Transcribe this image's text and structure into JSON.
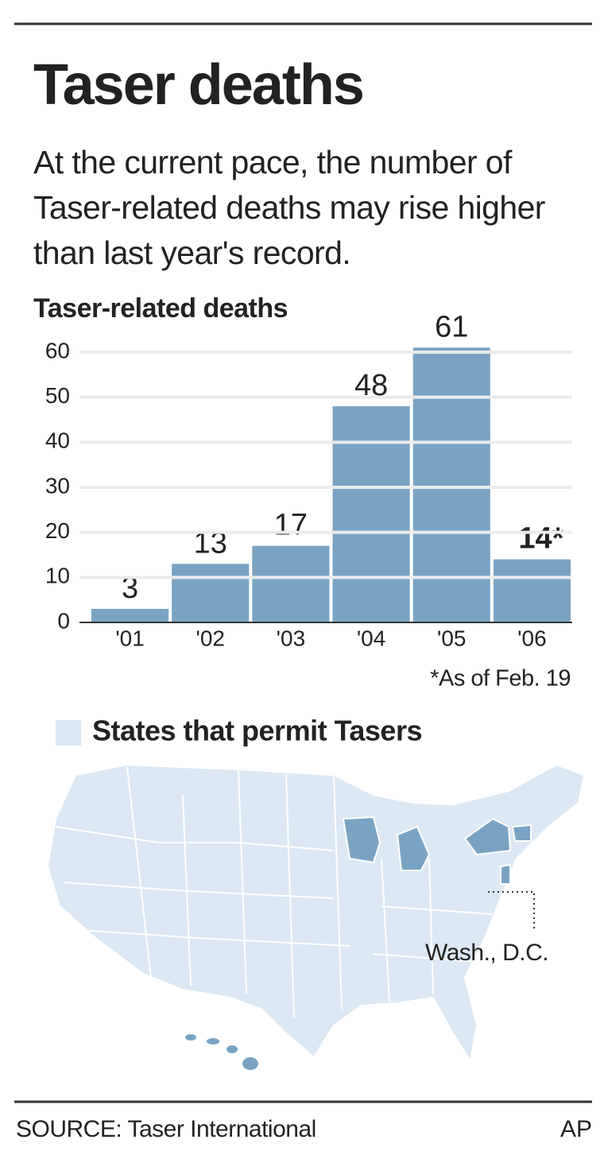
{
  "chart_data": {
    "type": "bar",
    "headline": "Taser deaths",
    "subtitle": "At the current pace, the number of Taser-related deaths may rise higher than last year's record.",
    "title": "Taser-related deaths",
    "categories": [
      "'01",
      "'02",
      "'03",
      "'04",
      "'05",
      "'06"
    ],
    "values": [
      3,
      13,
      17,
      48,
      61,
      14
    ],
    "value_labels": [
      "3",
      "13",
      "17",
      "48",
      "61",
      "14*"
    ],
    "color": "#7aa3c3",
    "ylim": [
      0,
      60
    ],
    "yticks": [
      0,
      10,
      20,
      30,
      40,
      50,
      60
    ],
    "grid": true,
    "note": "*As of Feb. 19",
    "map_legend": "States that permit Tasers",
    "map_label": "Wash., D.C.",
    "source": "SOURCE: Taser International",
    "credit": "AP"
  }
}
